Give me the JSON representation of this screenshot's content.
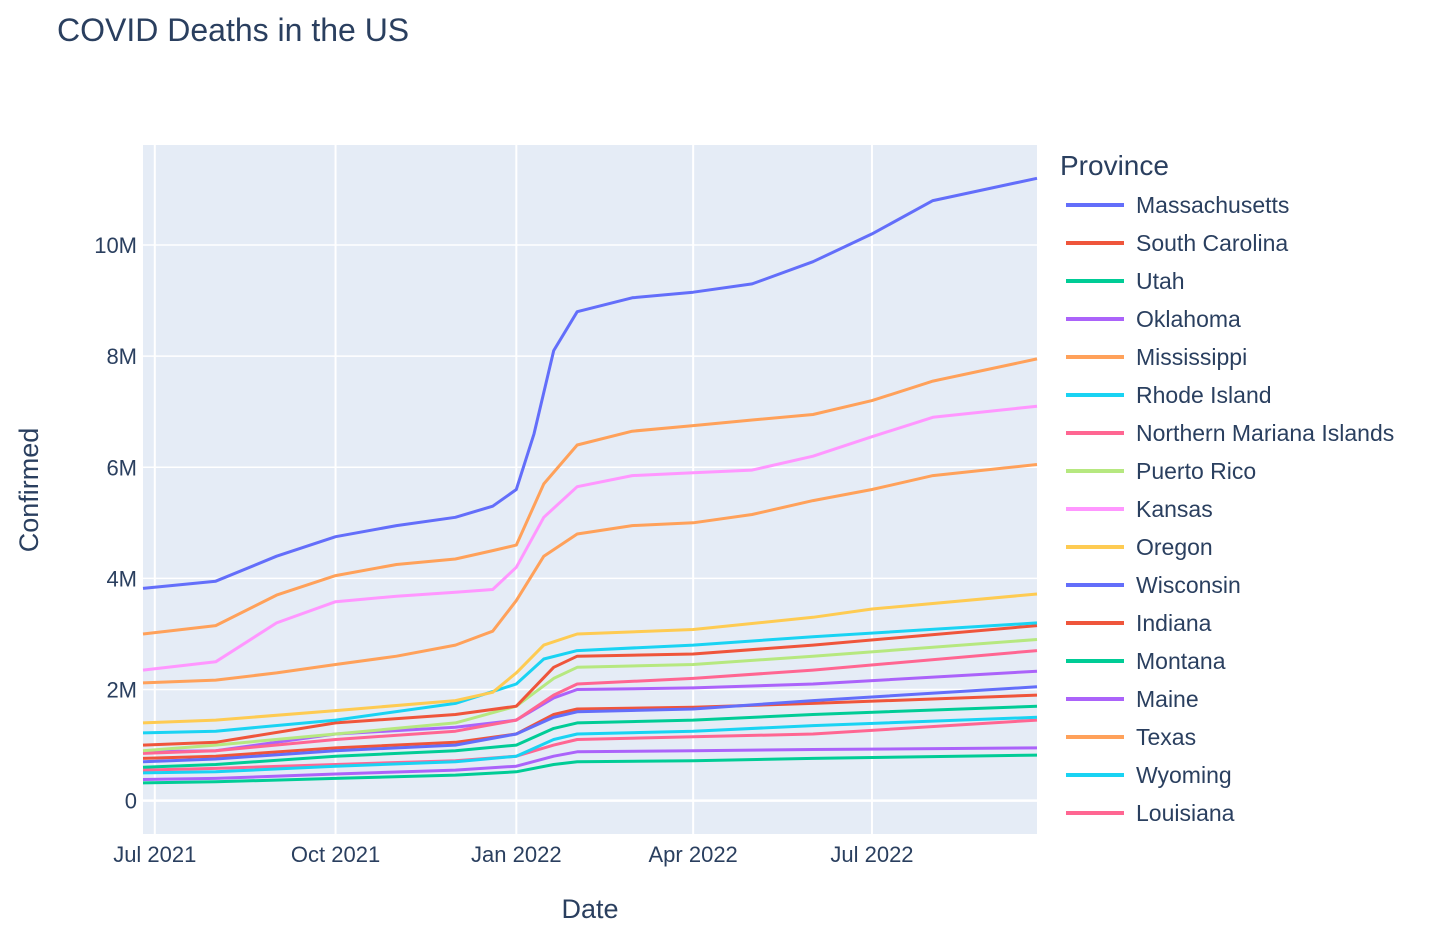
{
  "title": "COVID Deaths in the US",
  "chart_data": {
    "type": "line",
    "title": "COVID Deaths in the US",
    "xlabel": "Date",
    "ylabel": "Confirmed",
    "x_range": [
      "2021-06-25",
      "2022-09-23"
    ],
    "y_range": [
      -600000,
      11800000
    ],
    "x_ticks": [
      {
        "date": "2021-07-01",
        "label": "Jul 2021"
      },
      {
        "date": "2021-10-01",
        "label": "Oct 2021"
      },
      {
        "date": "2022-01-01",
        "label": "Jan 2022"
      },
      {
        "date": "2022-04-01",
        "label": "Apr 2022"
      },
      {
        "date": "2022-07-01",
        "label": "Jul 2022"
      }
    ],
    "y_ticks": [
      {
        "value": 0,
        "label": "0"
      },
      {
        "value": 2000000,
        "label": "2M"
      },
      {
        "value": 4000000,
        "label": "4M"
      },
      {
        "value": 6000000,
        "label": "6M"
      },
      {
        "value": 8000000,
        "label": "8M"
      },
      {
        "value": 10000000,
        "label": "10M"
      }
    ],
    "grid": true,
    "legend_title": "Province",
    "legend_position": "right",
    "series": [
      {
        "name": "Massachusetts",
        "color": "#636efa",
        "x": [
          "2021-06-25",
          "2021-08-01",
          "2021-09-01",
          "2021-10-01",
          "2021-11-01",
          "2021-12-01",
          "2021-12-20",
          "2022-01-01",
          "2022-01-10",
          "2022-01-20",
          "2022-02-01",
          "2022-03-01",
          "2022-04-01",
          "2022-05-01",
          "2022-06-01",
          "2022-07-01",
          "2022-08-01",
          "2022-09-23"
        ],
        "y": [
          3820000,
          3950000,
          4400000,
          4750000,
          4950000,
          5100000,
          5300000,
          5600000,
          6600000,
          8100000,
          8800000,
          9050000,
          9150000,
          9300000,
          9700000,
          10200000,
          10800000,
          11200000
        ]
      },
      {
        "name": "Texas",
        "color": "#ffa15a",
        "x": [
          "2021-06-25",
          "2021-08-01",
          "2021-09-01",
          "2021-10-01",
          "2021-11-01",
          "2021-12-01",
          "2021-12-20",
          "2022-01-01",
          "2022-01-15",
          "2022-02-01",
          "2022-03-01",
          "2022-04-01",
          "2022-05-01",
          "2022-06-01",
          "2022-07-01",
          "2022-08-01",
          "2022-09-23"
        ],
        "y": [
          3000000,
          3150000,
          3700000,
          4050000,
          4250000,
          4350000,
          4500000,
          4600000,
          5700000,
          6400000,
          6650000,
          6750000,
          6850000,
          6950000,
          7200000,
          7550000,
          7950000
        ]
      },
      {
        "name": "Kansas",
        "color": "#ff97ff",
        "x": [
          "2021-06-25",
          "2021-08-01",
          "2021-09-01",
          "2021-10-01",
          "2021-11-01",
          "2021-12-01",
          "2021-12-20",
          "2022-01-01",
          "2022-01-15",
          "2022-02-01",
          "2022-03-01",
          "2022-04-01",
          "2022-05-01",
          "2022-06-01",
          "2022-07-01",
          "2022-08-01",
          "2022-09-23"
        ],
        "y": [
          2350000,
          2500000,
          3200000,
          3580000,
          3680000,
          3750000,
          3800000,
          4200000,
          5100000,
          5650000,
          5850000,
          5900000,
          5950000,
          6200000,
          6550000,
          6900000,
          7100000
        ]
      },
      {
        "name": "Mississippi",
        "color": "#ffa15a",
        "x": [
          "2021-06-25",
          "2021-08-01",
          "2021-09-01",
          "2021-10-01",
          "2021-11-01",
          "2021-12-01",
          "2021-12-20",
          "2022-01-01",
          "2022-01-15",
          "2022-02-01",
          "2022-03-01",
          "2022-04-01",
          "2022-05-01",
          "2022-06-01",
          "2022-07-01",
          "2022-08-01",
          "2022-09-23"
        ],
        "y": [
          2120000,
          2170000,
          2300000,
          2450000,
          2600000,
          2800000,
          3050000,
          3600000,
          4400000,
          4800000,
          4950000,
          5000000,
          5150000,
          5400000,
          5600000,
          5850000,
          6050000
        ]
      },
      {
        "name": "Oregon",
        "color": "#fecb52",
        "x": [
          "2021-06-25",
          "2021-08-01",
          "2021-10-01",
          "2021-12-01",
          "2021-12-20",
          "2022-01-01",
          "2022-01-15",
          "2022-02-01",
          "2022-04-01",
          "2022-06-01",
          "2022-07-01",
          "2022-09-23"
        ],
        "y": [
          1400000,
          1450000,
          1620000,
          1800000,
          1950000,
          2300000,
          2800000,
          3000000,
          3080000,
          3300000,
          3450000,
          3720000
        ]
      },
      {
        "name": "Wyoming",
        "color": "#19d3f3",
        "x": [
          "2021-06-25",
          "2021-08-01",
          "2021-10-01",
          "2021-12-01",
          "2022-01-01",
          "2022-01-15",
          "2022-02-01",
          "2022-04-01",
          "2022-06-01",
          "2022-09-23"
        ],
        "y": [
          1220000,
          1250000,
          1450000,
          1750000,
          2100000,
          2550000,
          2700000,
          2800000,
          2950000,
          3200000
        ]
      },
      {
        "name": "Indiana",
        "color": "#ef553b",
        "x": [
          "2021-06-25",
          "2021-08-01",
          "2021-10-01",
          "2021-12-01",
          "2022-01-01",
          "2022-01-20",
          "2022-02-01",
          "2022-04-01",
          "2022-06-01",
          "2022-09-23"
        ],
        "y": [
          1000000,
          1050000,
          1400000,
          1550000,
          1700000,
          2400000,
          2600000,
          2640000,
          2800000,
          3150000
        ]
      },
      {
        "name": "Puerto Rico",
        "color": "#b6e880",
        "x": [
          "2021-06-25",
          "2021-08-01",
          "2021-10-01",
          "2021-12-01",
          "2022-01-01",
          "2022-01-20",
          "2022-02-01",
          "2022-04-01",
          "2022-06-01",
          "2022-09-23"
        ],
        "y": [
          900000,
          1000000,
          1200000,
          1400000,
          1700000,
          2200000,
          2400000,
          2450000,
          2600000,
          2900000
        ]
      },
      {
        "name": "Louisiana",
        "color": "#ff6692",
        "x": [
          "2021-06-25",
          "2021-08-01",
          "2021-10-01",
          "2021-12-01",
          "2022-01-01",
          "2022-01-20",
          "2022-02-01",
          "2022-04-01",
          "2022-06-01",
          "2022-09-23"
        ],
        "y": [
          850000,
          900000,
          1100000,
          1250000,
          1450000,
          1900000,
          2100000,
          2200000,
          2350000,
          2700000
        ]
      },
      {
        "name": "Oklahoma",
        "color": "#ab63fa",
        "x": [
          "2021-06-25",
          "2021-08-01",
          "2021-10-01",
          "2021-12-01",
          "2022-01-01",
          "2022-01-20",
          "2022-02-01",
          "2022-04-01",
          "2022-06-01",
          "2022-09-23"
        ],
        "y": [
          880000,
          900000,
          1200000,
          1320000,
          1450000,
          1850000,
          2000000,
          2030000,
          2100000,
          2330000
        ]
      },
      {
        "name": "Wisconsin",
        "color": "#636efa",
        "x": [
          "2021-06-25",
          "2021-08-01",
          "2021-10-01",
          "2021-12-01",
          "2022-01-01",
          "2022-01-20",
          "2022-02-01",
          "2022-04-01",
          "2022-06-01",
          "2022-09-23"
        ],
        "y": [
          700000,
          750000,
          900000,
          1000000,
          1200000,
          1500000,
          1600000,
          1650000,
          1800000,
          2050000
        ]
      },
      {
        "name": "South Carolina",
        "color": "#ef553b",
        "x": [
          "2021-06-25",
          "2021-08-01",
          "2021-10-01",
          "2021-12-01",
          "2022-01-01",
          "2022-01-20",
          "2022-02-01",
          "2022-04-01",
          "2022-06-01",
          "2022-09-23"
        ],
        "y": [
          760000,
          800000,
          950000,
          1050000,
          1200000,
          1550000,
          1650000,
          1680000,
          1750000,
          1900000
        ]
      },
      {
        "name": "Montana",
        "color": "#00cc96",
        "x": [
          "2021-06-25",
          "2021-08-01",
          "2021-10-01",
          "2021-12-01",
          "2022-01-01",
          "2022-01-20",
          "2022-02-01",
          "2022-04-01",
          "2022-06-01",
          "2022-09-23"
        ],
        "y": [
          600000,
          650000,
          800000,
          900000,
          1000000,
          1300000,
          1400000,
          1450000,
          1550000,
          1700000
        ]
      },
      {
        "name": "Rhode Island",
        "color": "#19d3f3",
        "x": [
          "2021-06-25",
          "2021-08-01",
          "2021-10-01",
          "2021-12-01",
          "2022-01-01",
          "2022-01-20",
          "2022-02-01",
          "2022-04-01",
          "2022-06-01",
          "2022-09-23"
        ],
        "y": [
          500000,
          520000,
          620000,
          700000,
          800000,
          1100000,
          1200000,
          1250000,
          1350000,
          1500000
        ]
      },
      {
        "name": "Northern Mariana Islands",
        "color": "#ff6692",
        "x": [
          "2021-06-25",
          "2021-08-01",
          "2021-10-01",
          "2021-12-01",
          "2022-01-01",
          "2022-01-20",
          "2022-02-01",
          "2022-04-01",
          "2022-06-01",
          "2022-09-23"
        ],
        "y": [
          550000,
          580000,
          650000,
          720000,
          800000,
          1000000,
          1100000,
          1150000,
          1200000,
          1450000
        ]
      },
      {
        "name": "Maine",
        "color": "#ab63fa",
        "x": [
          "2021-06-25",
          "2021-08-01",
          "2021-10-01",
          "2021-12-01",
          "2022-01-01",
          "2022-01-20",
          "2022-02-01",
          "2022-04-01",
          "2022-06-01",
          "2022-09-23"
        ],
        "y": [
          380000,
          400000,
          480000,
          550000,
          620000,
          800000,
          880000,
          900000,
          920000,
          950000
        ]
      },
      {
        "name": "Utah",
        "color": "#00cc96",
        "x": [
          "2021-06-25",
          "2021-08-01",
          "2021-10-01",
          "2021-12-01",
          "2022-01-01",
          "2022-01-20",
          "2022-02-01",
          "2022-04-01",
          "2022-06-01",
          "2022-09-23"
        ],
        "y": [
          320000,
          340000,
          400000,
          460000,
          520000,
          650000,
          700000,
          720000,
          760000,
          820000
        ]
      }
    ]
  }
}
